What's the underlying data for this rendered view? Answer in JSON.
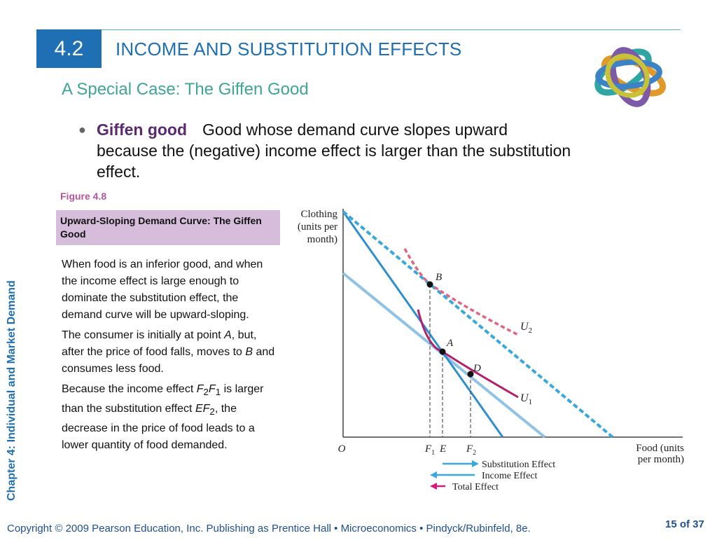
{
  "header": {
    "section_number": "4.2",
    "title": "INCOME AND SUBSTITUTION EFFECTS"
  },
  "subtitle": "A Special Case: The Giffen Good",
  "bullet": {
    "symbol": "●",
    "term": "Giffen good",
    "definition": "Good whose demand curve slopes upward because the (negative) income effect is larger than the substitution effect."
  },
  "figure": {
    "label": "Figure 4.8",
    "caption": "Upward-Sloping Demand Curve: The Giffen Good"
  },
  "description": {
    "p1": "When food is an inferior good, and when the income effect is large enough to dominate the substitution effect, the demand curve will be upward-sloping.",
    "p2": {
      "a": "The consumer is initially at point ",
      "pointA": "A",
      "b": ", but, after the price of food falls, moves to ",
      "pointB": "B",
      "c": " and consumes less food."
    },
    "p3": {
      "a": "Because the income effect ",
      "f2": "F",
      "f2sub": "2",
      "f1": "F",
      "f1sub": "1",
      "b": " is larger than the substitution effect ",
      "ef": "EF",
      "efsub": "2",
      "c": ", the decrease in the price of food leads to a lower quantity of food demanded."
    }
  },
  "diagram": {
    "y_axis_label": [
      "Clothing",
      "(units per",
      "month)"
    ],
    "x_axis_label": [
      "Food (units",
      "per month)"
    ],
    "origin": "O",
    "points": {
      "A": "A",
      "B": "B",
      "D": "D"
    },
    "curves": {
      "U1": "U",
      "U1_sub": "1",
      "U2": "U",
      "U2_sub": "2"
    },
    "ticks": {
      "F1": "F",
      "F1_sub": "1",
      "E": "E",
      "F2": "F",
      "F2_sub": "2"
    },
    "legend": {
      "substitution": "Substitution Effect",
      "income": "Income Effect",
      "total": "Total Effect"
    },
    "colors": {
      "budget_line": "#2e8fcf",
      "new_budget_dashed": "#3aa8dc",
      "parallel_budget": "#8ec3e6",
      "u1": "#b3216d",
      "u2_dashed": "#e06680",
      "total_arrow": "#d81b7a",
      "effect_arrow": "#3aa8dc"
    }
  },
  "sidebar": {
    "chapter_text": "Chapter 4:  Individual and Market Demand"
  },
  "footer": {
    "copyright": "Copyright © 2009 Pearson Education, Inc. Publishing as Prentice Hall  •  Microeconomics  •  Pindyck/Rubinfeld, 8e.",
    "page": "15 of 37"
  }
}
